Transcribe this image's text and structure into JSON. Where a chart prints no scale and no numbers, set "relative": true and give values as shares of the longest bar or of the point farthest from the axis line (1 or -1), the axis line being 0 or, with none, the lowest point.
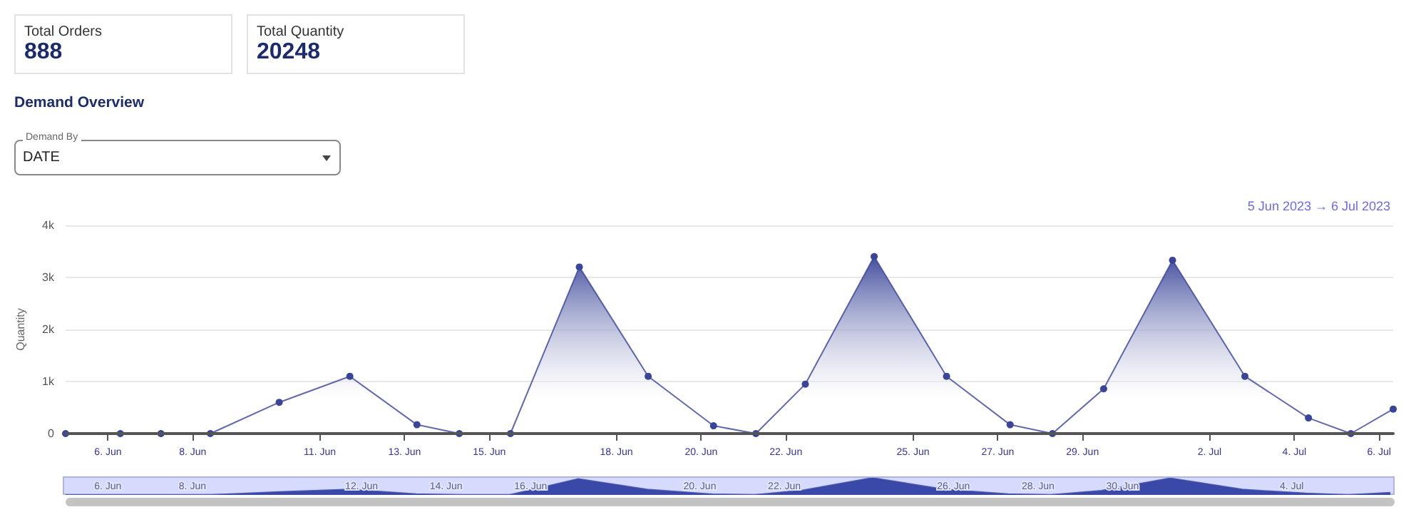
{
  "chart_data": [
    {
      "type": "other",
      "annotations": [
        "Total Orders",
        "888",
        "Total Quantity",
        "20248",
        "Demand By",
        "DATE"
      ]
    },
    {
      "type": "area",
      "title": "Demand Overview",
      "ylabel": "Quantity",
      "annotations": [
        "5 Jun 2023 → 6 Jul 2023"
      ],
      "x": [
        "2023-06-05T00:00",
        "2023-06-06T07:00",
        "2023-06-07T06:00",
        "2023-06-08T10:00",
        "2023-06-10T01:00",
        "2023-06-11T17:00",
        "2023-06-13T07:00",
        "2023-06-14T07:00",
        "2023-06-15T12:00",
        "2023-06-17T03:00",
        "2023-06-18T18:00",
        "2023-06-20T07:00",
        "2023-06-21T07:00",
        "2023-06-22T11:00",
        "2023-06-24T02:00",
        "2023-06-25T19:00",
        "2023-06-27T07:00",
        "2023-06-28T07:00",
        "2023-06-29T12:00",
        "2023-07-01T03:00",
        "2023-07-02T20:00",
        "2023-07-04T08:00",
        "2023-07-05T08:00",
        "2023-07-06T08:00"
      ],
      "series": [
        {
          "color": "#3a4599",
          "values": [
            0,
            0,
            0,
            0,
            600,
            1100,
            170,
            0,
            0,
            3200,
            1100,
            150,
            0,
            950,
            3400,
            1100,
            170,
            0,
            860,
            3330,
            1100,
            300,
            0,
            470
          ]
        }
      ],
      "xlim": [
        "2023-06-05T00:00",
        "2023-07-06T08:00"
      ],
      "xticks": [
        {
          "value": "2023-06-06T00:00",
          "label": "6. Jun"
        },
        {
          "value": "2023-06-08T00:00",
          "label": "8. Jun"
        },
        {
          "value": "2023-06-11T00:00",
          "label": "11. Jun"
        },
        {
          "value": "2023-06-13T00:00",
          "label": "13. Jun"
        },
        {
          "value": "2023-06-15T00:00",
          "label": "15. Jun"
        },
        {
          "value": "2023-06-18T00:00",
          "label": "18. Jun"
        },
        {
          "value": "2023-06-20T00:00",
          "label": "20. Jun"
        },
        {
          "value": "2023-06-22T00:00",
          "label": "22. Jun"
        },
        {
          "value": "2023-06-25T00:00",
          "label": "25. Jun"
        },
        {
          "value": "2023-06-27T00:00",
          "label": "27. Jun"
        },
        {
          "value": "2023-06-29T00:00",
          "label": "29. Jun"
        },
        {
          "value": "2023-07-02T00:00",
          "label": "2. Jul"
        },
        {
          "value": "2023-07-04T00:00",
          "label": "4. Jul"
        },
        {
          "value": "2023-07-06T00:00",
          "label": "6. Jul"
        }
      ],
      "ylim": [
        0,
        4000
      ],
      "yticks": [
        0,
        {
          "value": 1000,
          "label": "1k"
        },
        {
          "value": 2000,
          "label": "2k"
        },
        {
          "value": 3000,
          "label": "3k"
        },
        {
          "value": 4000,
          "label": "4k"
        }
      ],
      "grid": "y",
      "marker": "circle",
      "line_style": "solid"
    },
    {
      "type": "area",
      "relative": true,
      "tick_labels": "x",
      "marker": "none",
      "x": [
        "2023-06-05T00:00",
        "2023-06-06T07:00",
        "2023-06-07T06:00",
        "2023-06-08T10:00",
        "2023-06-10T01:00",
        "2023-06-11T17:00",
        "2023-06-13T07:00",
        "2023-06-14T07:00",
        "2023-06-15T12:00",
        "2023-06-17T03:00",
        "2023-06-18T18:00",
        "2023-06-20T07:00",
        "2023-06-21T07:00",
        "2023-06-22T11:00",
        "2023-06-24T02:00",
        "2023-06-25T19:00",
        "2023-06-27T07:00",
        "2023-06-28T07:00",
        "2023-06-29T12:00",
        "2023-07-01T03:00",
        "2023-07-02T20:00",
        "2023-07-04T08:00",
        "2023-07-05T08:00",
        "2023-07-06T08:00"
      ],
      "series": [
        {
          "color": "#3a48a8",
          "values": [
            0,
            0,
            0,
            0,
            0.18,
            0.32,
            0.05,
            0,
            0,
            0.94,
            0.32,
            0.04,
            0,
            0.28,
            1,
            0.32,
            0.05,
            0,
            0.25,
            0.98,
            0.32,
            0.09,
            0,
            0.14
          ]
        }
      ],
      "xlim": [
        "2023-06-05T00:00",
        "2023-07-06T08:00"
      ],
      "xticks": [
        {
          "value": "2023-06-06T00:00",
          "label": "6. Jun"
        },
        {
          "value": "2023-06-08T00:00",
          "label": "8. Jun"
        },
        {
          "value": "2023-06-12T00:00",
          "label": "12. Jun"
        },
        {
          "value": "2023-06-14T00:00",
          "label": "14. Jun"
        },
        {
          "value": "2023-06-16T00:00",
          "label": "16. Jun"
        },
        {
          "value": "2023-06-20T00:00",
          "label": "20. Jun"
        },
        {
          "value": "2023-06-22T00:00",
          "label": "22. Jun"
        },
        {
          "value": "2023-06-26T00:00",
          "label": "26. Jun"
        },
        {
          "value": "2023-06-28T00:00",
          "label": "28. Jun"
        },
        {
          "value": "2023-06-30T00:00",
          "label": "30. Jun"
        },
        {
          "value": "2023-07-04T00:00",
          "label": "4. Jul"
        }
      ]
    }
  ]
}
